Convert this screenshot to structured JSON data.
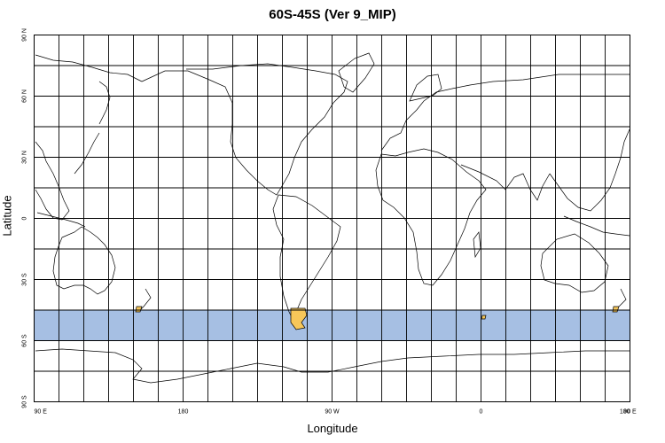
{
  "title": "60S-45S (Ver 9_MIP)",
  "xlabel": "Longitude",
  "ylabel": "Latitude",
  "chart_data": {
    "type": "map",
    "title": "60S-45S (Ver 9_MIP)",
    "xlabel": "Longitude",
    "ylabel": "Latitude",
    "projection": "equirectangular",
    "lon_range": [
      90,
      450
    ],
    "lat_range": [
      -90,
      90
    ],
    "grid": true,
    "grid_step_lon": 15,
    "grid_step_lat": 15,
    "x_ticks": [
      {
        "value": 90,
        "label": "90 E"
      },
      {
        "value": 180,
        "label": "180"
      },
      {
        "value": 270,
        "label": "90 W"
      },
      {
        "value": 360,
        "label": "0"
      },
      {
        "value": 450,
        "label": "90 E"
      },
      {
        "value": 540,
        "label": "180"
      }
    ],
    "y_ticks": [
      {
        "value": 90,
        "label": "90 N"
      },
      {
        "value": 60,
        "label": "60 N"
      },
      {
        "value": 30,
        "label": "30 N"
      },
      {
        "value": 0,
        "label": "0"
      },
      {
        "value": -30,
        "label": "30 S"
      },
      {
        "value": -60,
        "label": "60 S"
      },
      {
        "value": -90,
        "label": "90 S"
      }
    ],
    "highlight_band": {
      "lat_min": -60,
      "lat_max": -45,
      "color": "#a6bfe3"
    },
    "highlight_land_color": "#f6c659",
    "coast_color": "#000000"
  }
}
